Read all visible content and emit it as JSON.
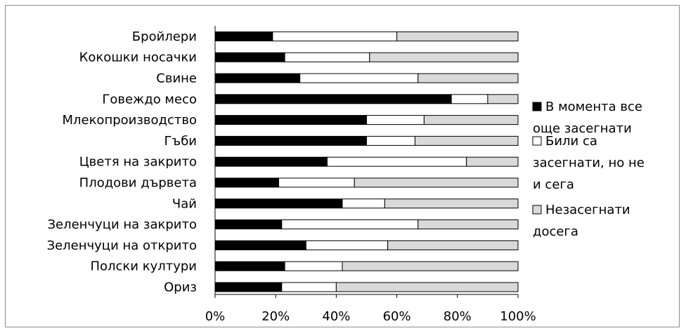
{
  "chart_data": {
    "type": "bar",
    "orientation": "horizontal",
    "stacked": "percent",
    "categories": [
      "Бройлери",
      "Кокошки носачки",
      "Свине",
      "Говеждо месо",
      "Млекопроизводство",
      "Гъби",
      "Цветя на закрито",
      "Плодови дървета",
      "Чай",
      "Зеленчуци на закрито",
      "Зеленчуци на открито",
      "Полски култури",
      "Ориз"
    ],
    "series": [
      {
        "name": "В момента все още засегнати",
        "legend_lines": [
          "В момента все",
          "още засегнати"
        ],
        "color": "#000000",
        "values": [
          19,
          23,
          28,
          78,
          50,
          50,
          37,
          21,
          42,
          22,
          30,
          23,
          22
        ]
      },
      {
        "name": "Били са засегнати, но не и сега",
        "legend_lines": [
          "Били са",
          "засегнати, но не",
          "и сега"
        ],
        "color": "#ffffff",
        "values": [
          41,
          28,
          39,
          12,
          19,
          16,
          46,
          25,
          14,
          45,
          27,
          19,
          18
        ]
      },
      {
        "name": "Незасегнати досега",
        "legend_lines": [
          "Незасегнати",
          "досега"
        ],
        "color": "#d9d9d9",
        "values": [
          40,
          49,
          33,
          10,
          31,
          34,
          17,
          54,
          44,
          33,
          43,
          58,
          60
        ]
      }
    ],
    "xlim": [
      0,
      100
    ],
    "xticks": [
      "0%",
      "20%",
      "40%",
      "60%",
      "80%",
      "100%"
    ],
    "grid": false,
    "legend_position": "right",
    "title": "",
    "xlabel": "",
    "ylabel": ""
  }
}
